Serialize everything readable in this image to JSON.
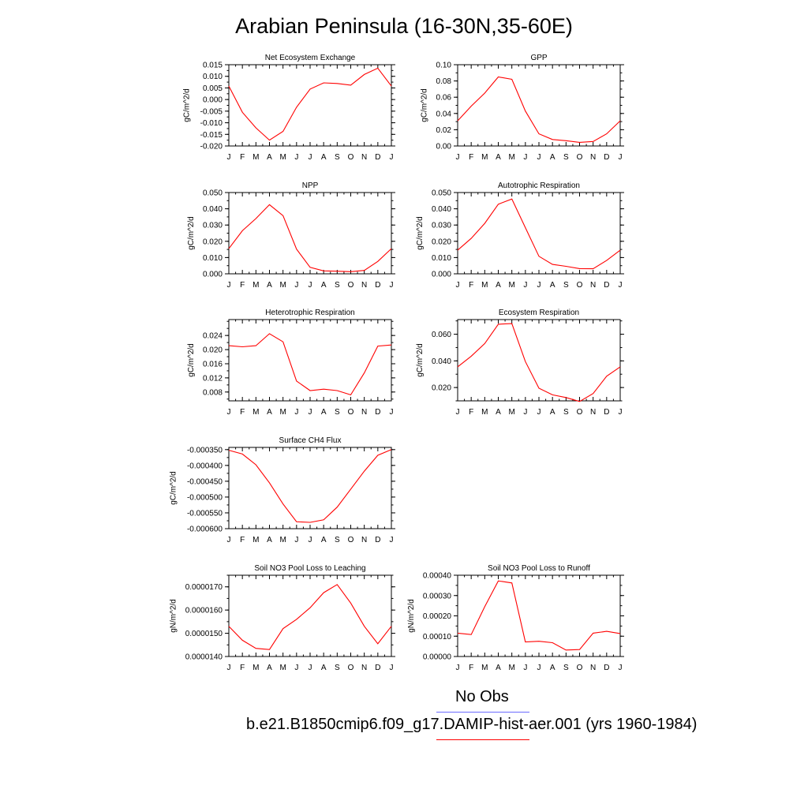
{
  "page": {
    "title": "Arabian Peninsula (16-30N,35-60E)"
  },
  "legend": {
    "items": [
      {
        "label": "No Obs",
        "color": "#6c6cff"
      },
      {
        "label": "b.e21.B1850cmip6.f09_g17.DAMIP-hist-aer.001 (yrs 1960-1984)",
        "color": "#ff0000"
      }
    ]
  },
  "months": [
    "J",
    "F",
    "M",
    "A",
    "M",
    "J",
    "J",
    "A",
    "S",
    "O",
    "N",
    "D",
    "J"
  ],
  "chart_data": [
    {
      "type": "line",
      "title": "Net Ecosystem Exchange",
      "ylabel": "gC/m^2/d",
      "ylim": [
        -0.02,
        0.015
      ],
      "yticks": [
        "0.015",
        "0.010",
        "0.005",
        "0.000",
        "-0.005",
        "-0.010",
        "-0.015",
        "-0.020"
      ],
      "yticks_values": [
        0.015,
        0.01,
        0.005,
        0.0,
        -0.005,
        -0.01,
        -0.015,
        -0.02
      ],
      "values": [
        0.0058,
        -0.0055,
        -0.0122,
        -0.0175,
        -0.0137,
        -0.0033,
        0.0045,
        0.0072,
        0.0069,
        0.0062,
        0.0108,
        0.0135,
        0.0058
      ]
    },
    {
      "type": "line",
      "title": "GPP",
      "ylabel": "gC/m^2/d",
      "ylim": [
        0.0,
        0.1
      ],
      "yticks": [
        "0.10",
        "0.08",
        "0.06",
        "0.04",
        "0.02",
        "0.00"
      ],
      "yticks_values": [
        0.1,
        0.08,
        0.06,
        0.04,
        0.02,
        0.0
      ],
      "values": [
        0.031,
        0.049,
        0.065,
        0.085,
        0.082,
        0.043,
        0.015,
        0.008,
        0.0065,
        0.0045,
        0.0055,
        0.015,
        0.031
      ]
    },
    {
      "type": "line",
      "title": "NPP",
      "ylabel": "gC/m^2/d",
      "ylim": [
        0.0,
        0.05
      ],
      "yticks": [
        "0.050",
        "0.040",
        "0.030",
        "0.020",
        "0.010",
        "0.000"
      ],
      "yticks_values": [
        0.05,
        0.04,
        0.03,
        0.02,
        0.01,
        0.0
      ],
      "values": [
        0.0155,
        0.0265,
        0.034,
        0.0425,
        0.0358,
        0.0152,
        0.004,
        0.0018,
        0.0016,
        0.0013,
        0.0021,
        0.0076,
        0.0155
      ]
    },
    {
      "type": "line",
      "title": "Autotrophic Respiration",
      "ylabel": "gC/m^2/d",
      "ylim": [
        0.0,
        0.05
      ],
      "yticks": [
        "0.050",
        "0.040",
        "0.030",
        "0.020",
        "0.010",
        "0.000"
      ],
      "yticks_values": [
        0.05,
        0.04,
        0.03,
        0.02,
        0.01,
        0.0
      ],
      "values": [
        0.0145,
        0.0218,
        0.031,
        0.0428,
        0.046,
        0.0284,
        0.0108,
        0.0058,
        0.0046,
        0.0032,
        0.0031,
        0.0082,
        0.0145
      ]
    },
    {
      "type": "line",
      "title": "Heterotrophic Respiration",
      "ylabel": "gC/m^2/d",
      "ylim": [
        0.0055,
        0.0285
      ],
      "yticks": [
        "0.024",
        "0.020",
        "0.016",
        "0.012",
        "0.008"
      ],
      "yticks_values": [
        0.024,
        0.02,
        0.016,
        0.012,
        0.008
      ],
      "values": [
        0.0211,
        0.0208,
        0.0211,
        0.0245,
        0.0222,
        0.0111,
        0.0084,
        0.0088,
        0.0084,
        0.0072,
        0.0134,
        0.021,
        0.0213
      ]
    },
    {
      "type": "line",
      "title": "Ecosystem Respiration",
      "ylabel": "gC/m^2/d",
      "ylim": [
        0.01,
        0.071
      ],
      "yticks": [
        "0.060",
        "0.040",
        "0.020"
      ],
      "yticks_values": [
        0.06,
        0.04,
        0.02
      ],
      "values": [
        0.0355,
        0.0435,
        0.053,
        0.0675,
        0.068,
        0.0395,
        0.0195,
        0.0145,
        0.0125,
        0.0095,
        0.0155,
        0.0285,
        0.0355
      ]
    },
    {
      "type": "line",
      "title": "Surface CH4 Flux",
      "ylabel": "gC/m^2/d",
      "ylim": [
        -0.0006,
        -0.000343
      ],
      "yticks": [
        "-0.000350",
        "-0.000400",
        "-0.000450",
        "-0.000500",
        "-0.000550",
        "-0.000600"
      ],
      "yticks_values": [
        -0.00035,
        -0.0004,
        -0.00045,
        -0.0005,
        -0.00055,
        -0.0006
      ],
      "values": [
        -0.000352,
        -0.000364,
        -0.000398,
        -0.000455,
        -0.000522,
        -0.000578,
        -0.00058,
        -0.000572,
        -0.000532,
        -0.000475,
        -0.000418,
        -0.000368,
        -0.00035
      ]
    },
    {
      "type": "line",
      "title": "Soil NO3 Pool Loss to Leaching",
      "ylabel": "gN/m^2/d",
      "ylim": [
        1.4e-05,
        1.75e-05
      ],
      "yticks": [
        "0.0000170",
        "0.0000160",
        "0.0000150",
        "0.0000140"
      ],
      "yticks_values": [
        1.7e-05,
        1.6e-05,
        1.5e-05,
        1.4e-05
      ],
      "values": [
        1.53e-05,
        1.47e-05,
        1.435e-05,
        1.43e-05,
        1.52e-05,
        1.56e-05,
        1.61e-05,
        1.675e-05,
        1.71e-05,
        1.63e-05,
        1.53e-05,
        1.455e-05,
        1.53e-05
      ]
    },
    {
      "type": "line",
      "title": "Soil NO3 Pool Loss to Runoff",
      "ylabel": "gN/m^2/d",
      "ylim": [
        0.0,
        0.0004
      ],
      "yticks": [
        "0.00040",
        "0.00030",
        "0.00020",
        "0.00010",
        "0.00000"
      ],
      "yticks_values": [
        0.0004,
        0.0003,
        0.0002,
        0.0001,
        0.0
      ],
      "values": [
        0.000115,
        0.000108,
        0.000245,
        0.000372,
        0.000362,
        7.2e-05,
        7.5e-05,
        6.8e-05,
        3.2e-05,
        3.4e-05,
        0.000115,
        0.000124,
        0.000113
      ]
    }
  ]
}
